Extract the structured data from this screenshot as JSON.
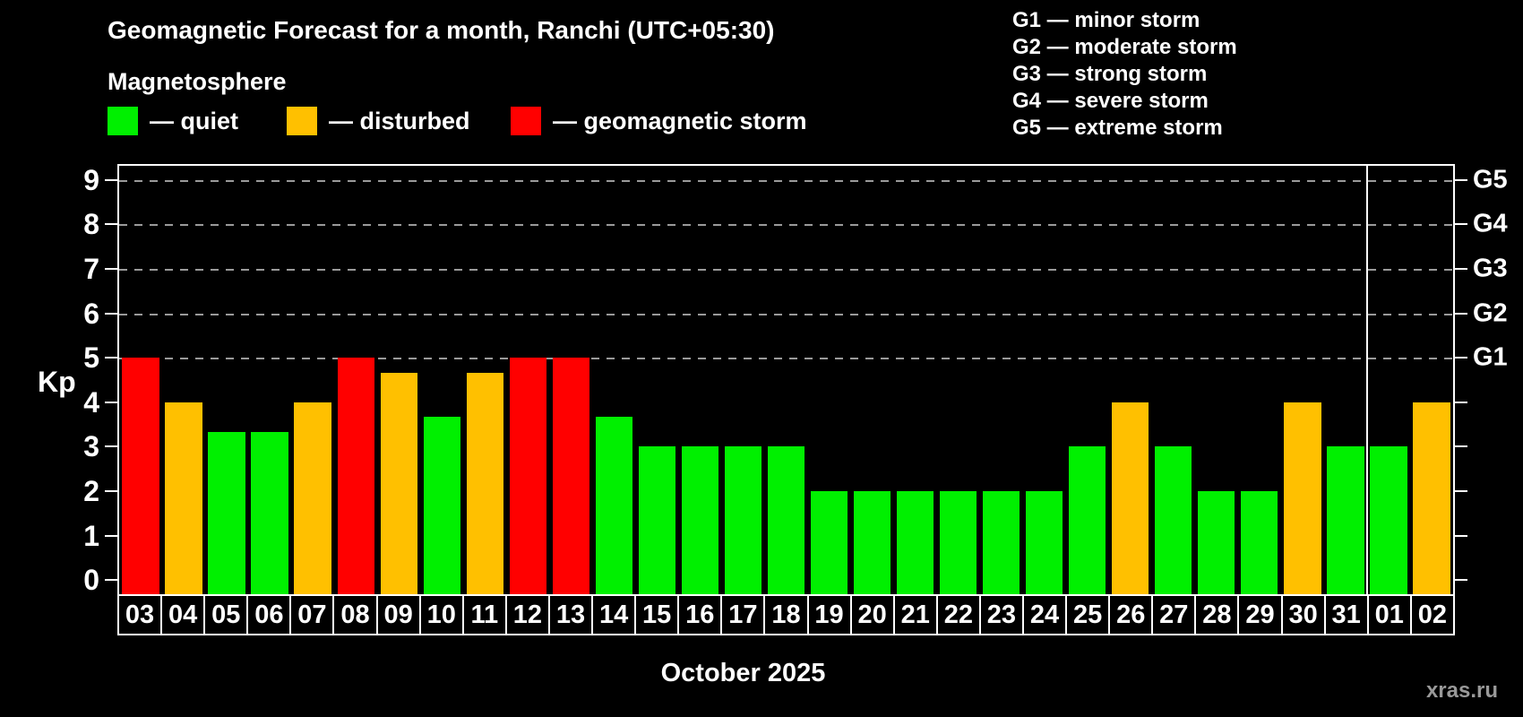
{
  "header": {
    "title": "Geomagnetic Forecast for a month, Ranchi (UTC+05:30)",
    "subtitle": "Magnetosphere"
  },
  "legend": {
    "items": [
      {
        "label": "— quiet",
        "level": "quiet",
        "color": "#00F000"
      },
      {
        "label": "— disturbed",
        "level": "disturbed",
        "color": "#FFC000"
      },
      {
        "label": "— geomagnetic storm",
        "level": "storm",
        "color": "#FF0000"
      }
    ]
  },
  "g_legend": {
    "items": [
      "G1 — minor storm",
      "G2 — moderate storm",
      "G3 — strong storm",
      "G4 — severe storm",
      "G5 — extreme storm"
    ]
  },
  "chart_data": {
    "type": "bar",
    "title": "Geomagnetic Forecast for a month, Ranchi (UTC+05:30)",
    "xlabel": "October 2025",
    "ylabel": "Kp",
    "ylim": [
      0,
      9
    ],
    "y_ticks": [
      0,
      1,
      2,
      3,
      4,
      5,
      6,
      7,
      8,
      9
    ],
    "grid": "dashed horizontal lines at Kp 5-9 only",
    "legend_position": "top",
    "right_axis": {
      "labels": [
        "G1",
        "G2",
        "G3",
        "G4",
        "G5"
      ],
      "values": [
        5,
        6,
        7,
        8,
        9
      ]
    },
    "colors": {
      "quiet": "#00F000",
      "disturbed": "#FFC000",
      "storm": "#FF0000"
    },
    "separator_after_day": "31",
    "bars": [
      {
        "day": "03",
        "kp": 5,
        "level": "storm"
      },
      {
        "day": "04",
        "kp": 4,
        "level": "disturbed"
      },
      {
        "day": "05",
        "kp": 3.33,
        "level": "quiet"
      },
      {
        "day": "06",
        "kp": 3.33,
        "level": "quiet"
      },
      {
        "day": "07",
        "kp": 4,
        "level": "disturbed"
      },
      {
        "day": "08",
        "kp": 5,
        "level": "storm"
      },
      {
        "day": "09",
        "kp": 4.67,
        "level": "disturbed"
      },
      {
        "day": "10",
        "kp": 3.67,
        "level": "quiet"
      },
      {
        "day": "11",
        "kp": 4.67,
        "level": "disturbed"
      },
      {
        "day": "12",
        "kp": 5,
        "level": "storm"
      },
      {
        "day": "13",
        "kp": 5,
        "level": "storm"
      },
      {
        "day": "14",
        "kp": 3.67,
        "level": "quiet"
      },
      {
        "day": "15",
        "kp": 3,
        "level": "quiet"
      },
      {
        "day": "16",
        "kp": 3,
        "level": "quiet"
      },
      {
        "day": "17",
        "kp": 3,
        "level": "quiet"
      },
      {
        "day": "18",
        "kp": 3,
        "level": "quiet"
      },
      {
        "day": "19",
        "kp": 2,
        "level": "quiet"
      },
      {
        "day": "20",
        "kp": 2,
        "level": "quiet"
      },
      {
        "day": "21",
        "kp": 2,
        "level": "quiet"
      },
      {
        "day": "22",
        "kp": 2,
        "level": "quiet"
      },
      {
        "day": "23",
        "kp": 2,
        "level": "quiet"
      },
      {
        "day": "24",
        "kp": 2,
        "level": "quiet"
      },
      {
        "day": "25",
        "kp": 3,
        "level": "quiet"
      },
      {
        "day": "26",
        "kp": 4,
        "level": "disturbed"
      },
      {
        "day": "27",
        "kp": 3,
        "level": "quiet"
      },
      {
        "day": "28",
        "kp": 2,
        "level": "quiet"
      },
      {
        "day": "29",
        "kp": 2,
        "level": "quiet"
      },
      {
        "day": "30",
        "kp": 4,
        "level": "disturbed"
      },
      {
        "day": "31",
        "kp": 3,
        "level": "quiet"
      },
      {
        "day": "01",
        "kp": 3,
        "level": "quiet"
      },
      {
        "day": "02",
        "kp": 4,
        "level": "disturbed"
      }
    ]
  },
  "footer": {
    "month_label": "October 2025",
    "watermark": "xras.ru"
  }
}
